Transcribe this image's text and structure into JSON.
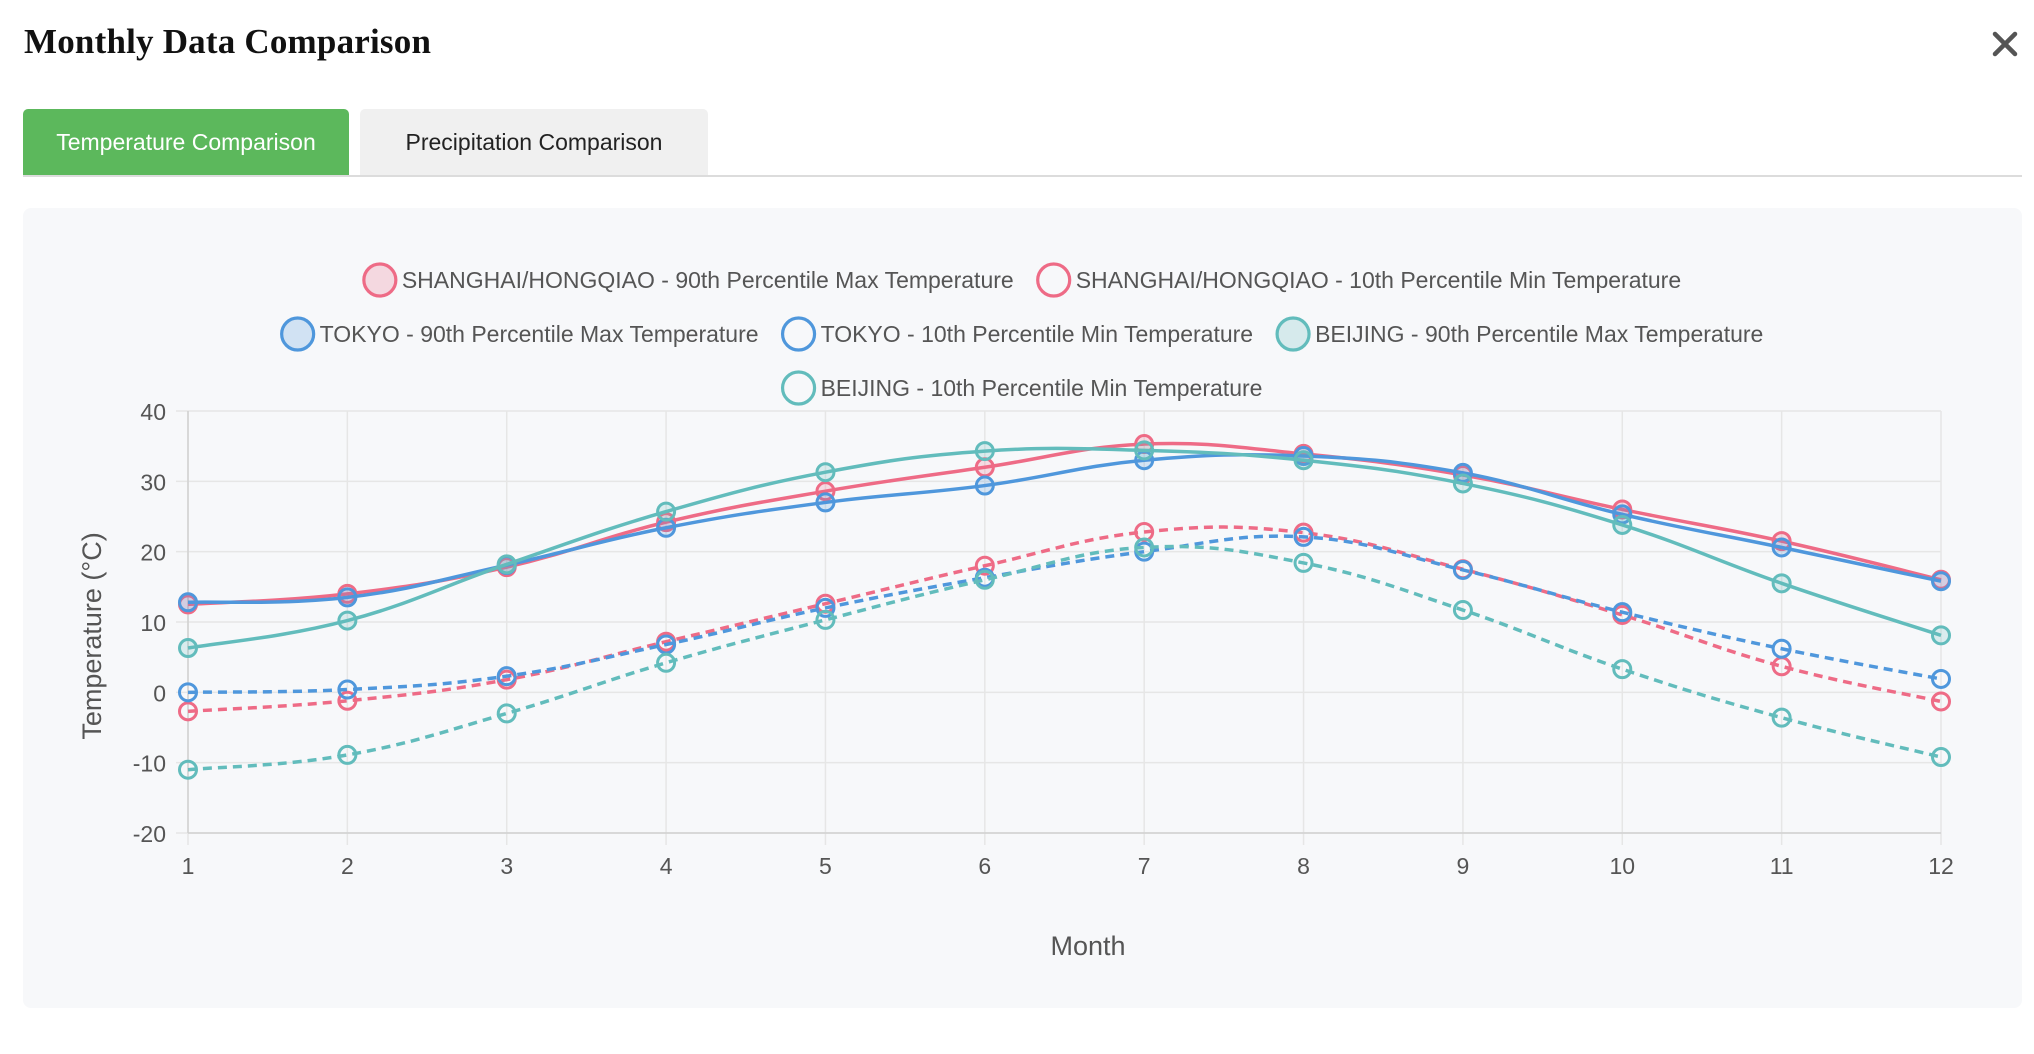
{
  "modal": {
    "title": "Monthly Data Comparison",
    "close_icon": "close-icon"
  },
  "tabs": [
    {
      "label": "Temperature Comparison",
      "active": true
    },
    {
      "label": "Precipitation Comparison",
      "active": false
    }
  ],
  "colors": {
    "active_tab": "#5cb85c",
    "inactive_tab": "#f0f0f0",
    "panel_bg": "#f7f8fa",
    "shanghai": "#ee6b86",
    "tokyo": "#4f97dc",
    "beijing": "#62bcbc",
    "axis_text": "#555555",
    "grid": "#e6e6e6"
  },
  "chart_data": {
    "type": "line",
    "title": "",
    "xlabel": "Month",
    "ylabel": "Temperature (°C)",
    "x": [
      1,
      2,
      3,
      4,
      5,
      6,
      7,
      8,
      9,
      10,
      11,
      12
    ],
    "ylim": [
      -20,
      40
    ],
    "yticks": [
      -20,
      -10,
      0,
      10,
      20,
      30,
      40
    ],
    "grid": true,
    "legend_position": "top-center",
    "series": [
      {
        "name": "SHANGHAI/HONGQIAO - 90th Percentile Max Temperature",
        "color": "#ee6b86",
        "dashed": false,
        "filled_marker": true,
        "values": [
          12.5,
          14,
          17.8,
          24.2,
          28.6,
          32,
          35.3,
          33.9,
          30.9,
          26,
          21.5,
          16
        ]
      },
      {
        "name": "SHANGHAI/HONGQIAO - 10th Percentile Min Temperature",
        "color": "#ee6b86",
        "dashed": true,
        "filled_marker": false,
        "values": [
          -2.7,
          -1.2,
          1.8,
          7.2,
          12.6,
          18,
          22.8,
          22.7,
          17.5,
          11,
          3.7,
          -1.3
        ]
      },
      {
        "name": "TOKYO - 90th Percentile Max Temperature",
        "color": "#4f97dc",
        "dashed": false,
        "filled_marker": true,
        "values": [
          12.8,
          13.5,
          18.1,
          23.4,
          27,
          29.4,
          33,
          33.6,
          31.2,
          25.3,
          20.6,
          15.8
        ]
      },
      {
        "name": "TOKYO - 10th Percentile Min Temperature",
        "color": "#4f97dc",
        "dashed": true,
        "filled_marker": false,
        "values": [
          0,
          0.4,
          2.3,
          6.8,
          12,
          16.3,
          20,
          22.1,
          17.4,
          11.4,
          6.2,
          1.9
        ]
      },
      {
        "name": "BEIJING - 90th Percentile Max Temperature",
        "color": "#62bcbc",
        "dashed": false,
        "filled_marker": true,
        "values": [
          6.3,
          10.2,
          18.2,
          25.7,
          31.3,
          34.3,
          34.4,
          33,
          29.7,
          23.8,
          15.5,
          8.1
        ]
      },
      {
        "name": "BEIJING - 10th Percentile Min Temperature",
        "color": "#62bcbc",
        "dashed": true,
        "filled_marker": false,
        "values": [
          -11,
          -8.9,
          -3,
          4.2,
          10.3,
          16,
          20.6,
          18.4,
          11.7,
          3.3,
          -3.6,
          -9.2
        ]
      }
    ]
  }
}
